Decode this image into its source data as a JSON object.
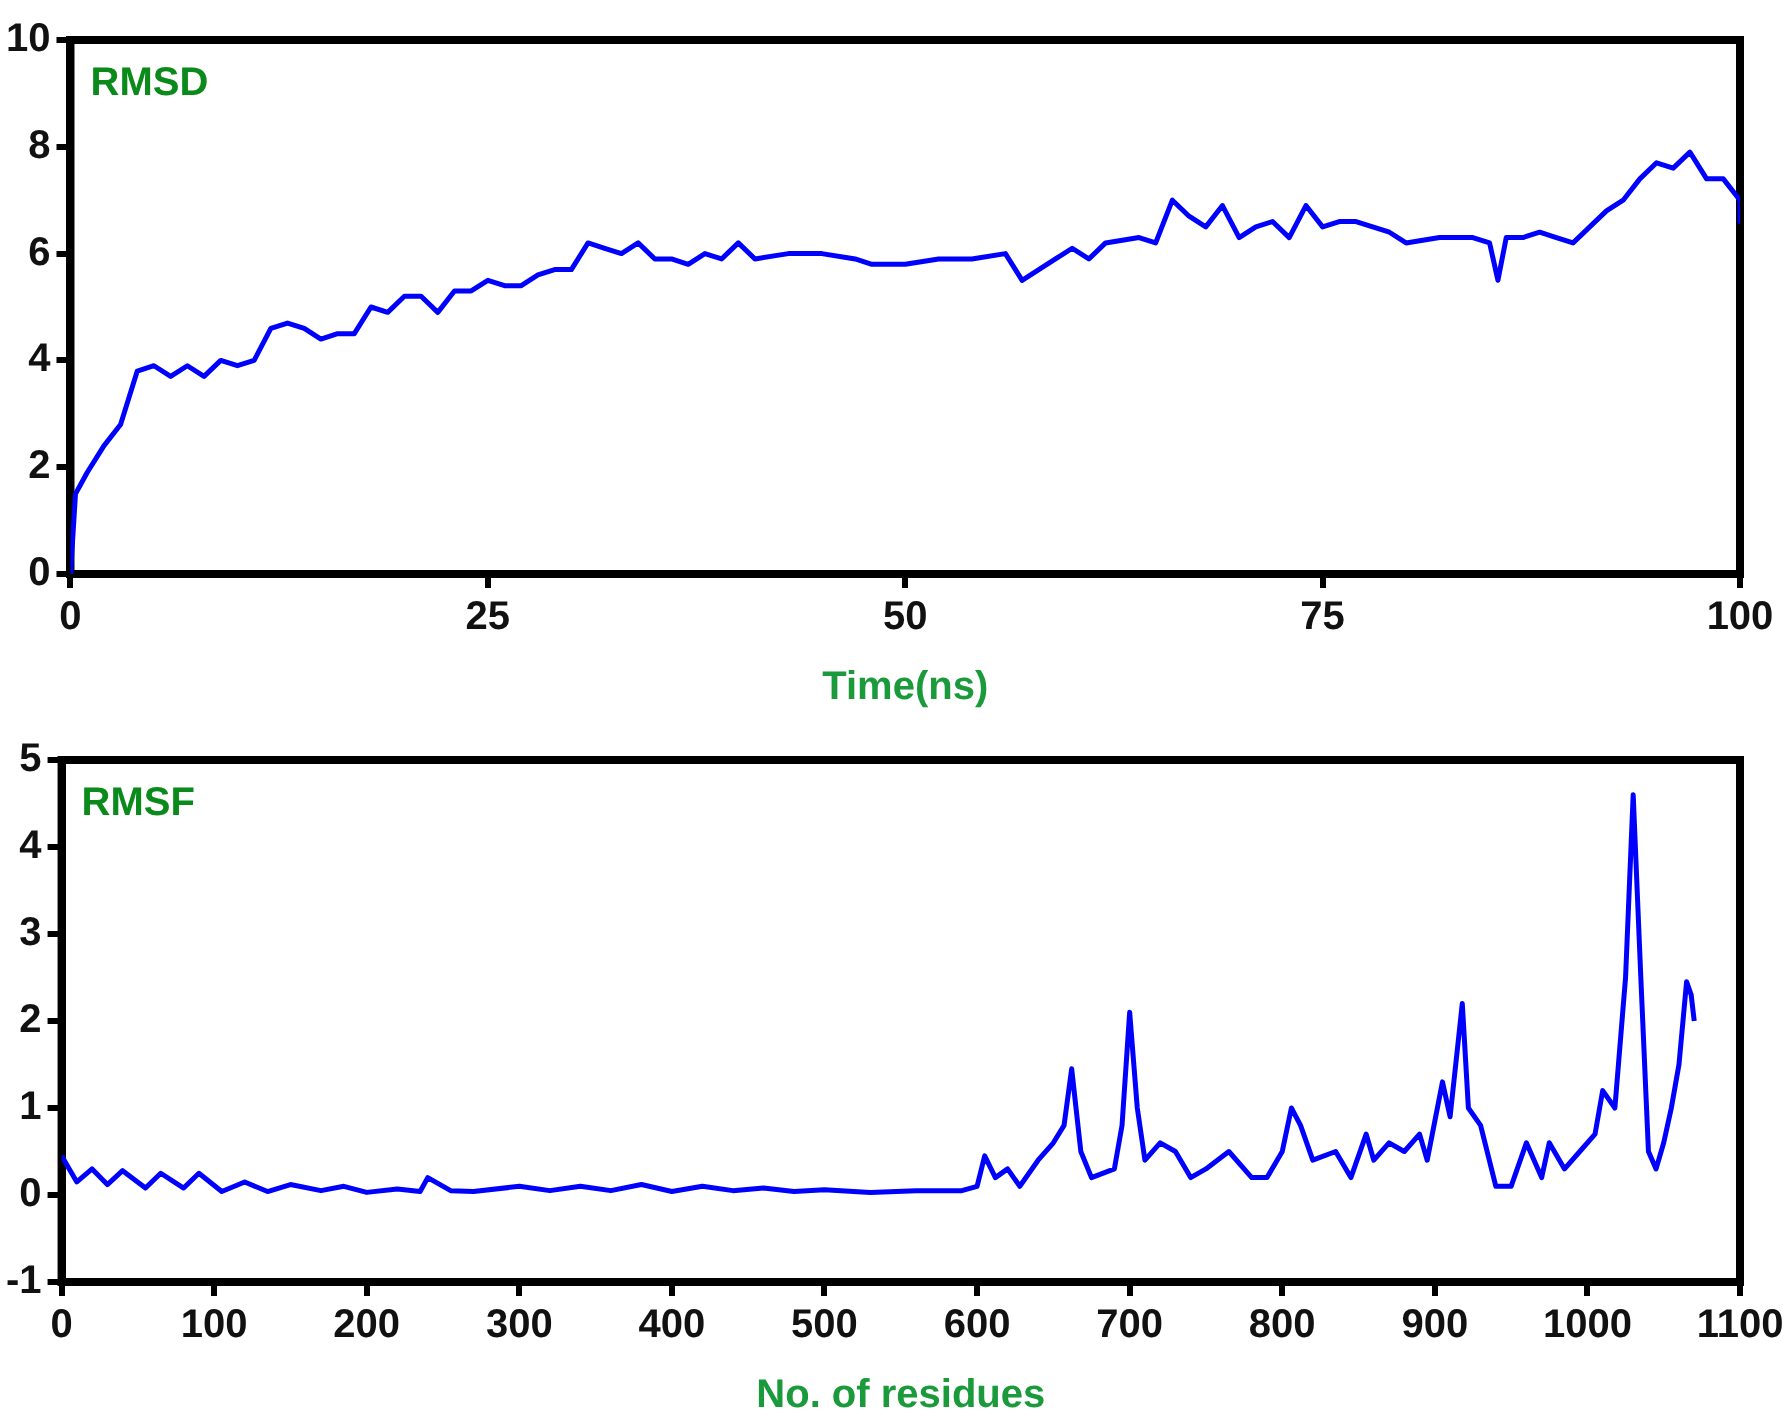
{
  "chart_data": [
    {
      "type": "line",
      "xlabel": "Time(ns)",
      "annotations": [
        "RMSD"
      ],
      "xlim": [
        0,
        100
      ],
      "xticks": [
        0,
        25,
        50,
        75,
        100
      ],
      "ylim": [
        0,
        10
      ],
      "yticks": [
        0,
        2,
        4,
        6,
        8,
        10
      ],
      "grid": false,
      "legend": false,
      "marker": "none",
      "line_style": "solid",
      "x": [
        0,
        0.3,
        1,
        2,
        3,
        4,
        5,
        6,
        7,
        8,
        9,
        10,
        11,
        12,
        13,
        14,
        15,
        16,
        17,
        18,
        19,
        20,
        21,
        22,
        23,
        24,
        25,
        26,
        27,
        28,
        29,
        30,
        31,
        32,
        33,
        34,
        35,
        36,
        37,
        38,
        39,
        40,
        41,
        43,
        45,
        47,
        48,
        50,
        52,
        54,
        56,
        57,
        58,
        59,
        60,
        61,
        62,
        64,
        65,
        66,
        67,
        68,
        69,
        70,
        71,
        72,
        73,
        74,
        75,
        76,
        77,
        78,
        79,
        80,
        82,
        84,
        85,
        85.5,
        86,
        87,
        88,
        89,
        90,
        91,
        92,
        93,
        94,
        95,
        96,
        97,
        98,
        99,
        100,
        100
      ],
      "series": [
        {
          "color": "#0000ff",
          "values": [
            0,
            1.5,
            1.9,
            2.4,
            2.8,
            3.8,
            3.9,
            3.7,
            3.9,
            3.7,
            4.0,
            3.9,
            4.0,
            4.6,
            4.7,
            4.6,
            4.4,
            4.5,
            4.5,
            5.0,
            4.9,
            5.2,
            5.2,
            4.9,
            5.3,
            5.3,
            5.5,
            5.4,
            5.4,
            5.6,
            5.7,
            5.7,
            6.2,
            6.1,
            6.0,
            6.2,
            5.9,
            5.9,
            5.8,
            6.0,
            5.9,
            6.2,
            5.9,
            6.0,
            6.0,
            5.9,
            5.8,
            5.8,
            5.9,
            5.9,
            6.0,
            5.5,
            5.7,
            5.9,
            6.1,
            5.9,
            6.2,
            6.3,
            6.2,
            7.0,
            6.7,
            6.5,
            6.9,
            6.3,
            6.5,
            6.6,
            6.3,
            6.9,
            6.5,
            6.6,
            6.6,
            6.5,
            6.4,
            6.2,
            6.3,
            6.3,
            6.2,
            5.5,
            6.3,
            6.3,
            6.4,
            6.3,
            6.2,
            6.5,
            6.8,
            7.0,
            7.4,
            7.7,
            7.6,
            7.9,
            7.4,
            7.4,
            7.0,
            6.6
          ]
        }
      ]
    },
    {
      "type": "line",
      "xlabel": "No. of residues",
      "annotations": [
        "RMSF"
      ],
      "xlim": [
        0,
        1100
      ],
      "xticks": [
        0,
        100,
        200,
        300,
        400,
        500,
        600,
        700,
        800,
        900,
        1000,
        1100
      ],
      "ylim": [
        -1,
        5
      ],
      "yticks": [
        -1,
        0,
        1,
        2,
        3,
        4,
        5
      ],
      "grid": false,
      "legend": false,
      "marker": "none",
      "line_style": "solid",
      "x": [
        0,
        10,
        20,
        30,
        40,
        55,
        65,
        80,
        90,
        105,
        120,
        135,
        150,
        170,
        185,
        200,
        220,
        235,
        240,
        255,
        270,
        300,
        320,
        340,
        360,
        380,
        400,
        420,
        440,
        460,
        480,
        500,
        530,
        560,
        590,
        600,
        605,
        612,
        620,
        628,
        640,
        650,
        657,
        662,
        668,
        675,
        690,
        695,
        700,
        705,
        710,
        720,
        730,
        740,
        750,
        765,
        780,
        790,
        800,
        806,
        812,
        820,
        835,
        845,
        855,
        860,
        870,
        880,
        890,
        895,
        905,
        910,
        918,
        922,
        930,
        940,
        950,
        960,
        970,
        975,
        985,
        995,
        1005,
        1010,
        1018,
        1025,
        1030,
        1035,
        1040,
        1045,
        1050,
        1055,
        1060,
        1065,
        1068,
        1070
      ],
      "series": [
        {
          "color": "#0000ff",
          "values": [
            0.45,
            0.15,
            0.3,
            0.12,
            0.28,
            0.08,
            0.25,
            0.08,
            0.25,
            0.04,
            0.15,
            0.04,
            0.12,
            0.05,
            0.1,
            0.03,
            0.07,
            0.04,
            0.2,
            0.05,
            0.04,
            0.1,
            0.05,
            0.1,
            0.05,
            0.12,
            0.04,
            0.1,
            0.05,
            0.08,
            0.04,
            0.06,
            0.03,
            0.05,
            0.05,
            0.1,
            0.45,
            0.2,
            0.3,
            0.1,
            0.4,
            0.6,
            0.8,
            1.45,
            0.5,
            0.2,
            0.3,
            0.8,
            2.1,
            1.0,
            0.4,
            0.6,
            0.5,
            0.2,
            0.3,
            0.5,
            0.2,
            0.2,
            0.5,
            1.0,
            0.8,
            0.4,
            0.5,
            0.2,
            0.7,
            0.4,
            0.6,
            0.5,
            0.7,
            0.4,
            1.3,
            0.9,
            2.2,
            1.0,
            0.8,
            0.1,
            0.1,
            0.6,
            0.2,
            0.6,
            0.3,
            0.5,
            0.7,
            1.2,
            1.0,
            2.5,
            4.6,
            2.5,
            0.5,
            0.3,
            0.6,
            1.0,
            1.5,
            2.45,
            2.3,
            2.0
          ]
        }
      ]
    }
  ]
}
